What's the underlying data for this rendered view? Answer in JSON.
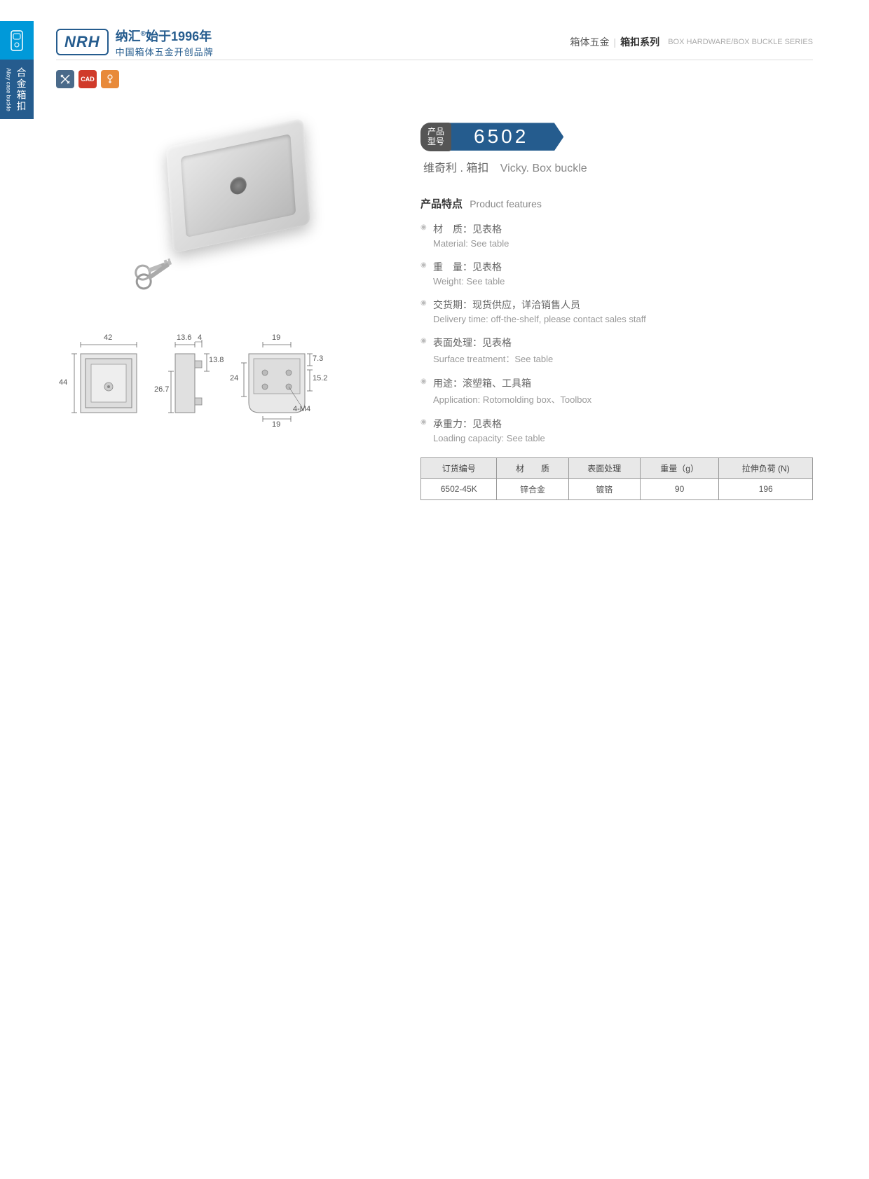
{
  "sidebar": {
    "cn": "合金箱扣",
    "en": "Alloy case buckle"
  },
  "header": {
    "logo_text": "NRH",
    "brand_cn": "纳汇",
    "brand_year": "始于1996年",
    "brand_tagline": "中国箱体五金开创品牌",
    "right_cn1": "箱体五金",
    "right_cn2": "箱扣系列",
    "right_en": "BOX HARDWARE/BOX BUCKLE SERIES"
  },
  "icons": [
    {
      "bg": "#4a6a8a",
      "label": "✕"
    },
    {
      "bg": "#d03a2a",
      "label": "CAD"
    },
    {
      "bg": "#e88a3a",
      "label": "🔑"
    }
  ],
  "product": {
    "label_line1": "产品",
    "label_line2": "型号",
    "number": "6502",
    "subtitle_cn": "维奇利 . 箱扣",
    "subtitle_en": "Vicky. Box buckle",
    "brand_mark": "NRH"
  },
  "features_title": {
    "cn": "产品特点",
    "en": "Product features"
  },
  "features": [
    {
      "cn": "材　质：见表格",
      "en": "Material: See table"
    },
    {
      "cn": "重　量：见表格",
      "en": "Weight: See table"
    },
    {
      "cn": "交货期：现货供应，详洽销售人员",
      "en": "Delivery time: off-the-shelf, please contact sales staff"
    },
    {
      "cn": "表面处理：见表格",
      "en": "Surface treatment：See table"
    },
    {
      "cn": "用途：滚塑箱、工具箱",
      "en": "Application: Rotomolding box、Toolbox"
    },
    {
      "cn": "承重力：见表格",
      "en": "Loading capacity: See table"
    }
  ],
  "spec_table": {
    "headers": [
      "订货编号",
      "材　　质",
      "表面处理",
      "重量（g）",
      "拉伸负荷 (N)"
    ],
    "rows": [
      [
        "6502-45K",
        "锌合金",
        "镀铬",
        "90",
        "196"
      ]
    ]
  },
  "drawings": {
    "d1": {
      "w": "42",
      "h": "44"
    },
    "d2": {
      "w": "13.6",
      "tab": "4",
      "inner_h": "26.7",
      "top_h": "13.8"
    },
    "d3": {
      "top_w": "19",
      "bot_w": "19",
      "h": "24",
      "right_h": "15.2",
      "right_top": "7.3",
      "holes": "4-M4"
    }
  },
  "colors": {
    "brand_blue": "#255c8e",
    "accent_blue": "#0099d9",
    "badge_gray": "#555555"
  }
}
